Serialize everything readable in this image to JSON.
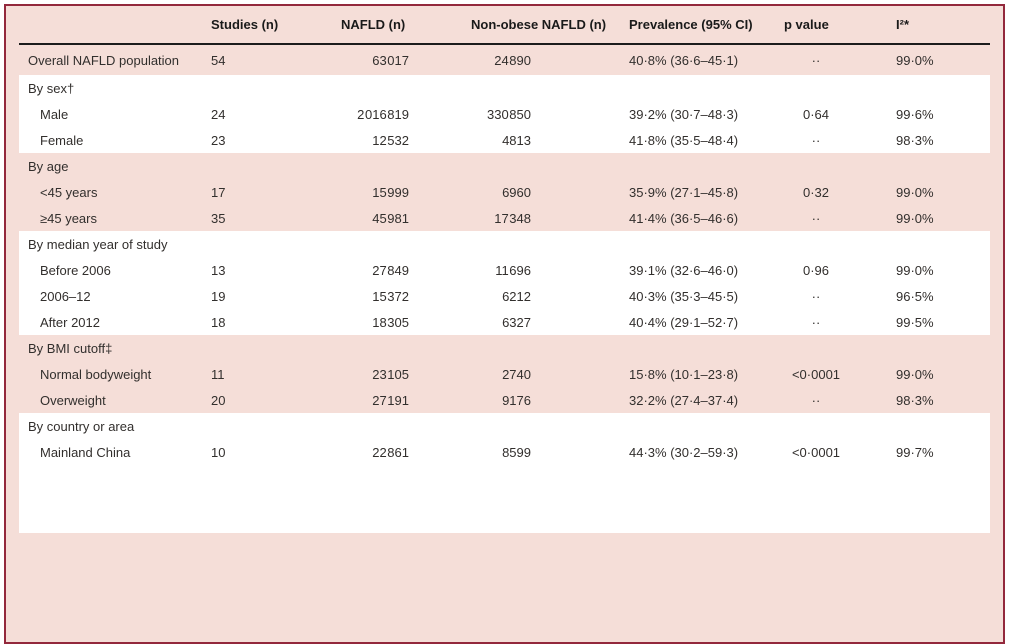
{
  "title": "Prevalence of non-obese NAFLD subgroup table",
  "colors": {
    "background_pink": "#f5ded8",
    "frame_border": "#93283c",
    "header_rule": "#1c1c1c",
    "text": "#322f2d",
    "band_white": "#ffffff"
  },
  "table": {
    "columns": [
      "",
      "Studies (n)",
      "NAFLD (n)",
      "Non-obese NAFLD (n)",
      "Prevalence (95% CI)",
      "p value",
      "I²*"
    ],
    "rows": [
      {
        "label": "Overall NAFLD population",
        "indent": false,
        "band": "pink1",
        "overall": true,
        "cells": [
          "54",
          "63 017",
          "24 890",
          "40·8% (36·6–45·1)",
          "··",
          "99·0%"
        ]
      },
      {
        "label": "By sex†",
        "indent": false,
        "band": "white1",
        "cells": [
          "",
          "",
          "",
          "",
          "",
          ""
        ]
      },
      {
        "label": "Male",
        "indent": true,
        "band": "white1",
        "cells": [
          "24",
          "2 016 819",
          "330 850",
          "39·2% (30·7–48·3)",
          "0·64",
          "99·6%"
        ]
      },
      {
        "label": "Female",
        "indent": true,
        "band": "white1",
        "cells": [
          "23",
          "12 532",
          "4813",
          "41·8% (35·5–48·4)",
          "··",
          "98·3%"
        ]
      },
      {
        "label": "By age",
        "indent": false,
        "band": "pink2",
        "cells": [
          "",
          "",
          "",
          "",
          "",
          ""
        ]
      },
      {
        "label": "<45 years",
        "indent": true,
        "band": "pink2",
        "cells": [
          "17",
          "15 999",
          "6960",
          "35·9% (27·1–45·8)",
          "0·32",
          "99·0%"
        ]
      },
      {
        "label": "≥45 years",
        "indent": true,
        "band": "pink2",
        "cells": [
          "35",
          "45 981",
          "17 348",
          "41·4% (36·5–46·6)",
          "··",
          "99·0%"
        ]
      },
      {
        "label": "By median year of study",
        "indent": false,
        "band": "white2",
        "cells": [
          "",
          "",
          "",
          "",
          "",
          ""
        ]
      },
      {
        "label": "Before 2006",
        "indent": true,
        "band": "white2",
        "cells": [
          "13",
          "27 849",
          "11 696",
          "39·1% (32·6–46·0)",
          "0·96",
          "99·0%"
        ]
      },
      {
        "label": "2006–12",
        "indent": true,
        "band": "white2",
        "cells": [
          "19",
          "15 372",
          "6212",
          "40·3% (35·3–45·5)",
          "··",
          "96·5%"
        ]
      },
      {
        "label": "After 2012",
        "indent": true,
        "band": "white2",
        "cells": [
          "18",
          "18 305",
          "6327",
          "40·4% (29·1–52·7)",
          "··",
          "99·5%"
        ]
      },
      {
        "label": "By BMI cutoff‡",
        "indent": false,
        "band": "pink3",
        "cells": [
          "",
          "",
          "",
          "",
          "",
          ""
        ]
      },
      {
        "label": "Normal bodyweight",
        "indent": true,
        "band": "pink3",
        "cells": [
          "11",
          "23 105",
          "2740",
          "15·8% (10·1–23·8)",
          "<0·0001",
          "99·0%"
        ]
      },
      {
        "label": "Overweight",
        "indent": true,
        "band": "pink3",
        "cells": [
          "20",
          "27 191",
          "9176",
          "32·2% (27·4–37·4)",
          "··",
          "98·3%"
        ]
      },
      {
        "label": "By country or area",
        "indent": false,
        "band": "white3",
        "cells": [
          "",
          "",
          "",
          "",
          "",
          ""
        ]
      },
      {
        "label": "Mainland China",
        "indent": true,
        "band": "white3",
        "cells": [
          "10",
          "22 861",
          "8599",
          "44·3% (30·2–59·3)",
          "<0·0001",
          "99·7%"
        ]
      }
    ]
  }
}
